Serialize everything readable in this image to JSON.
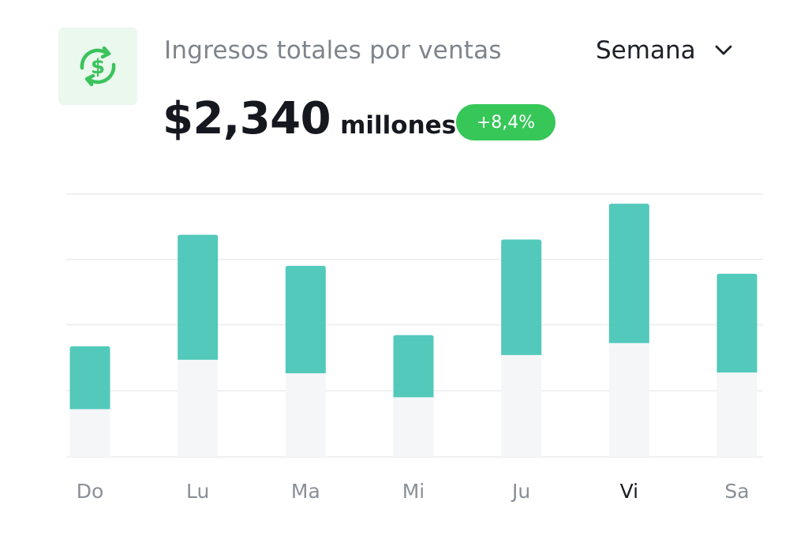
{
  "header": {
    "title": "Ingresos totales por ventas",
    "amount": "$2,340",
    "unit": "millones",
    "change_badge": "+8,4%",
    "period_selector": "Semana",
    "icon": "dollar-exchange-icon"
  },
  "colors": {
    "accent_bar": "#52c9bb",
    "base_bar": "#f5f6f8",
    "badge": "#36c758",
    "icon": "#3cc35c",
    "gridline": "#ececef"
  },
  "chart_data": {
    "type": "bar",
    "stacked": true,
    "categories": [
      "Do",
      "Lu",
      "Ma",
      "Mi",
      "Ju",
      "Vi",
      "Sa"
    ],
    "highlighted_category": "Vi",
    "series": [
      {
        "values": [
          60,
          122,
          105,
          75,
          128,
          143,
          106
        ]
      },
      {
        "values": [
          79,
          157,
          135,
          78,
          145,
          175,
          124
        ]
      }
    ],
    "ylim": [
      0,
      330
    ],
    "gridlines": [
      0,
      83,
      166,
      248,
      330
    ],
    "grid": true,
    "legend": "none"
  }
}
